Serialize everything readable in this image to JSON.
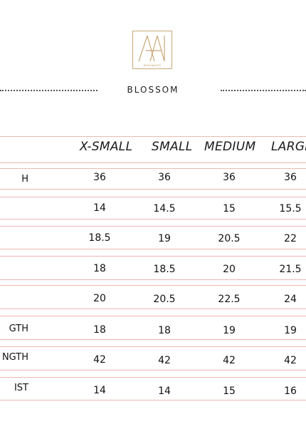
{
  "brand": {
    "logo_mark": "AA",
    "logo_text": "WHUMASO"
  },
  "document": {
    "title": "BLOSSOM"
  },
  "table": {
    "columns": [
      "X-SMALL",
      "SMALL",
      "MEDIUM",
      "LARGE"
    ],
    "rows": [
      {
        "label": "H",
        "values": [
          "36",
          "36",
          "36",
          "36"
        ]
      },
      {
        "label": "",
        "values": [
          "14",
          "14.5",
          "15",
          "15.5"
        ]
      },
      {
        "label": "",
        "values": [
          "18.5",
          "19",
          "20.5",
          "22"
        ]
      },
      {
        "label": "",
        "values": [
          "18",
          "18.5",
          "20",
          "21.5"
        ]
      },
      {
        "label": "",
        "values": [
          "20",
          "20.5",
          "22.5",
          "24"
        ]
      },
      {
        "label": "GTH",
        "values": [
          "18",
          "18",
          "19",
          "19"
        ]
      },
      {
        "label": "NGTH",
        "values": [
          "42",
          "42",
          "42",
          "42"
        ]
      },
      {
        "label": "IST",
        "values": [
          "14",
          "14",
          "15",
          "16"
        ]
      }
    ]
  },
  "colors": {
    "rule": "#efb7b2",
    "logo_gold": "#c9a877",
    "text": "#111111"
  }
}
